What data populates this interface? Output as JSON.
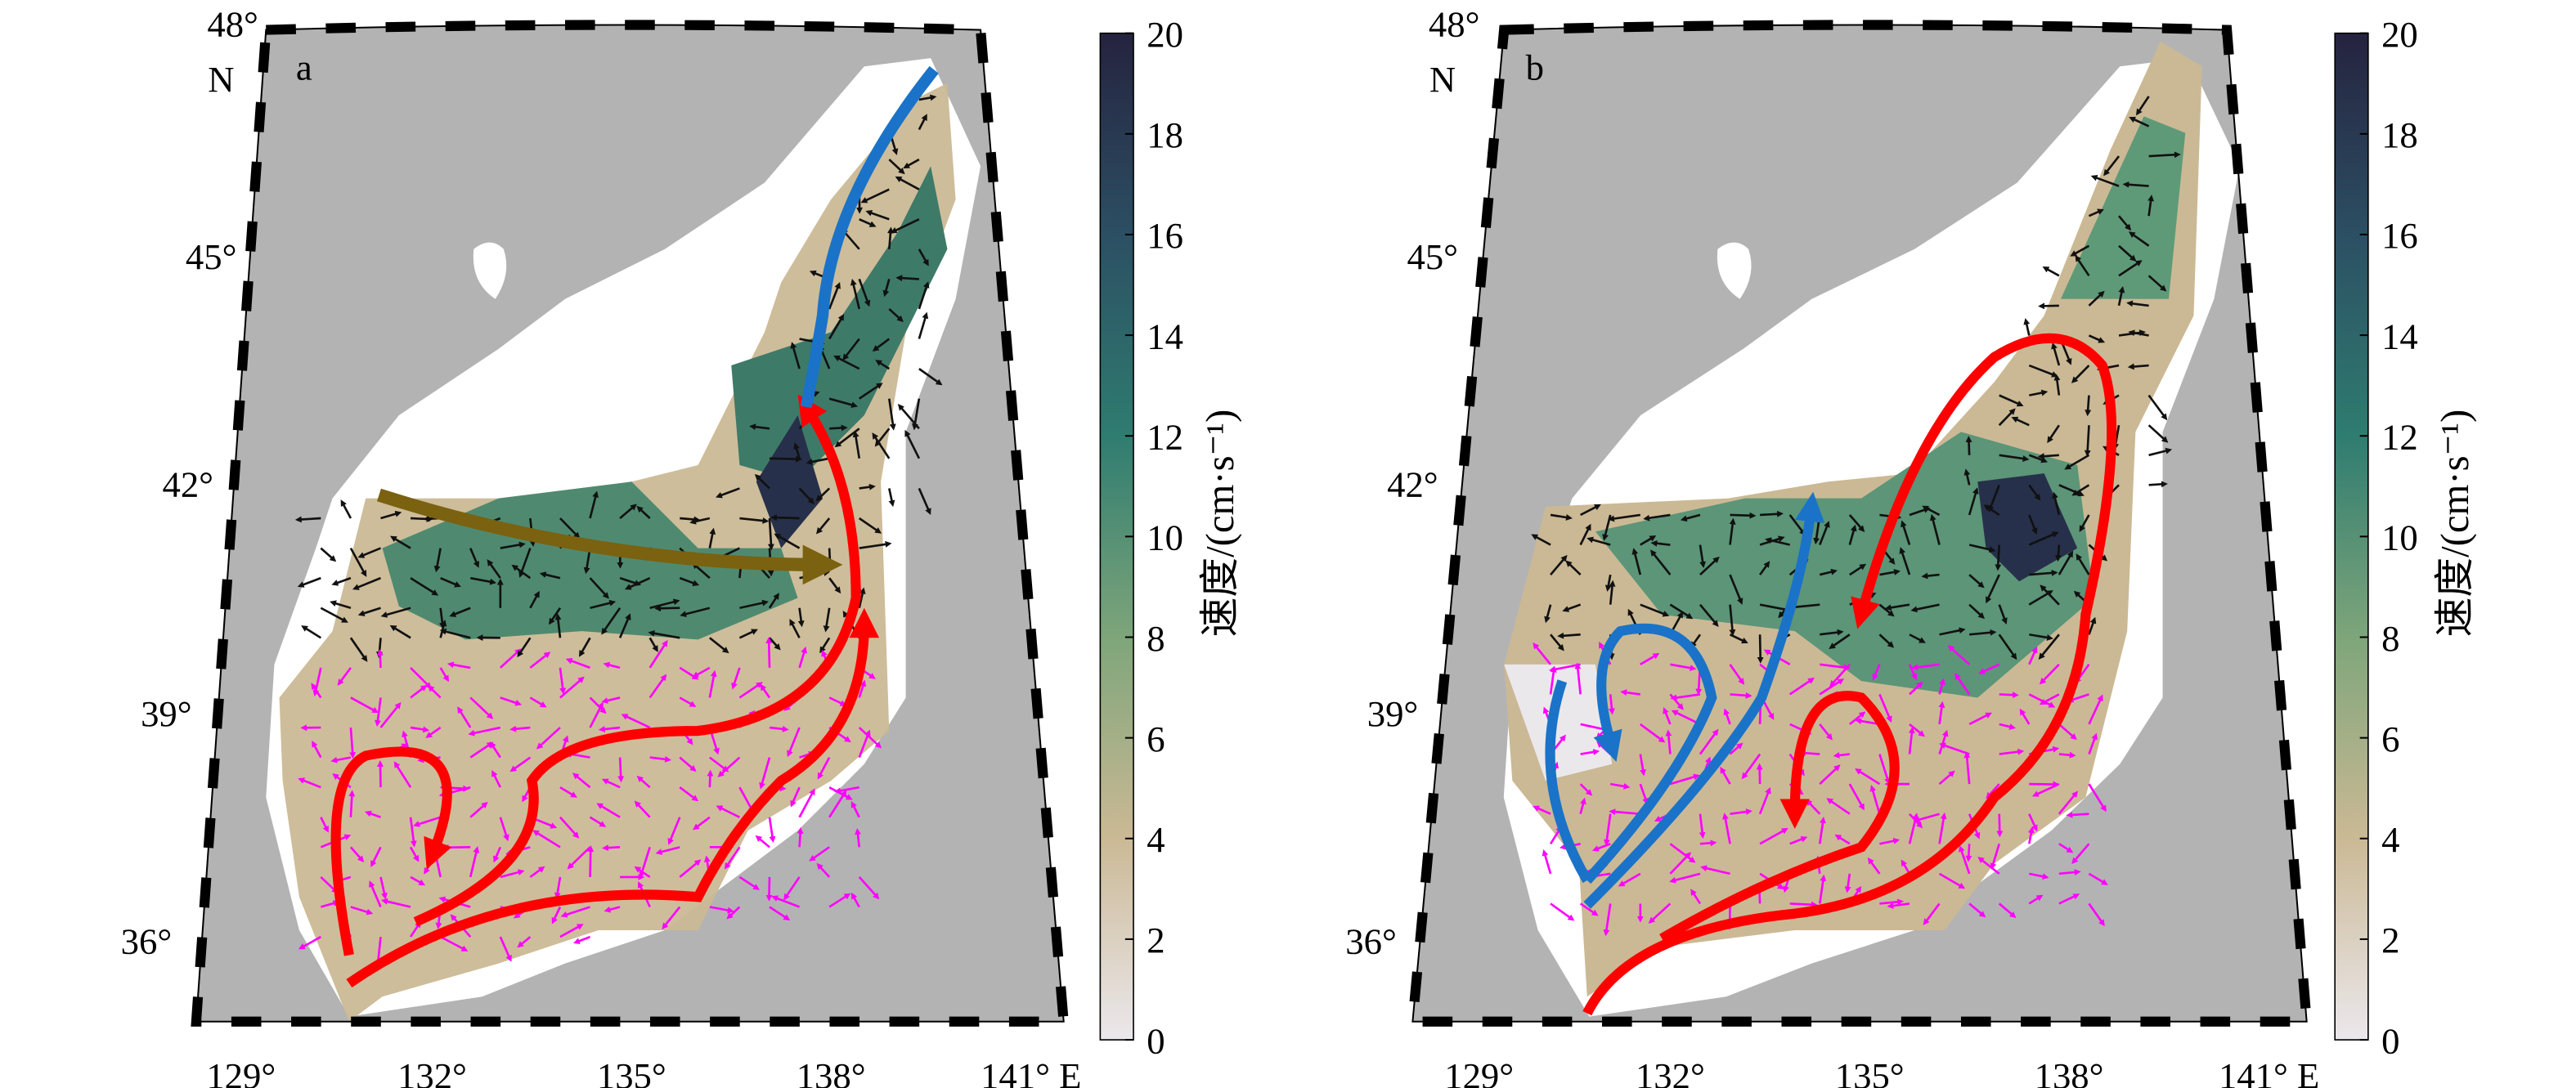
{
  "panels": [
    {
      "label": "a",
      "lat_labels": [
        "48°",
        "N",
        "45°",
        "42°",
        "39°",
        "36°"
      ],
      "lon_labels": [
        "129°",
        "132°",
        "135°",
        "138°",
        "141° E"
      ],
      "colorbar": {
        "label": "速度/(cm·s⁻¹)",
        "lim": [
          0,
          20
        ],
        "ticks": [
          0,
          2,
          4,
          6,
          8,
          10,
          12,
          14,
          16,
          18,
          20
        ],
        "colors": [
          "#ebe8ec",
          "#cbb995",
          "#7ea57a",
          "#2f7c70",
          "#2c4f63",
          "#25233f"
        ]
      }
    },
    {
      "label": "b",
      "lat_labels": [
        "48°",
        "N",
        "45°",
        "42°",
        "39°",
        "36°"
      ],
      "lon_labels": [
        "129°",
        "132°",
        "135°",
        "138°",
        "141° E"
      ],
      "colorbar": {
        "label": "速度/(cm·s⁻¹)",
        "lim": [
          0,
          20
        ],
        "ticks": [
          0,
          2,
          4,
          6,
          8,
          10,
          12,
          14,
          16,
          18,
          20
        ],
        "colors": [
          "#ebe8ec",
          "#cbb995",
          "#7ea57a",
          "#2f7c70",
          "#2c4f63",
          "#25233f"
        ]
      }
    }
  ]
}
